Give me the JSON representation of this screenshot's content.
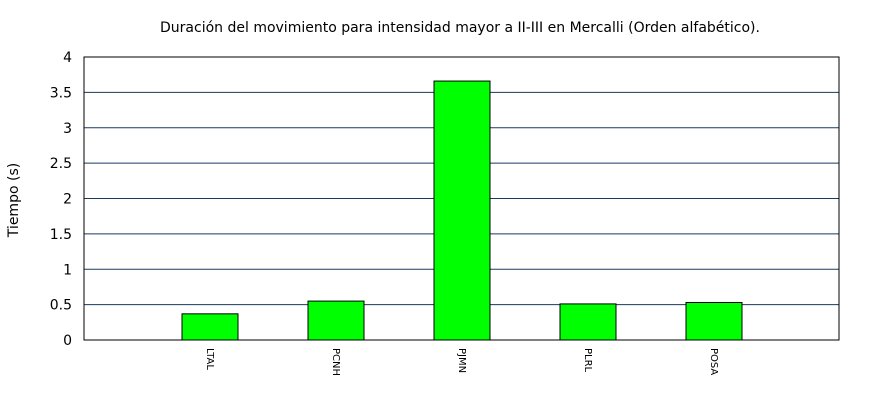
{
  "chart_data": {
    "type": "bar",
    "title": "Duración del movimiento para intensidad mayor a II-III en Mercalli (Orden alfabético).",
    "xlabel": "",
    "ylabel": "Tiempo (s)",
    "ylim": [
      0,
      4
    ],
    "yticks": [
      0,
      0.5,
      1,
      1.5,
      2,
      2.5,
      3,
      3.5,
      4
    ],
    "ytick_labels": [
      "0",
      "0.5",
      "1",
      "1.5",
      "2",
      "2.5",
      "3",
      "3.5",
      "4"
    ],
    "categories": [
      "LTAL",
      "PCNH",
      "PJMN",
      "PLRL",
      "POSA"
    ],
    "values": [
      0.37,
      0.55,
      3.66,
      0.51,
      0.53
    ],
    "grid": true,
    "legend": "none",
    "colors": {
      "bar_fill": "#00ff00",
      "bar_stroke": "#000000",
      "grid": "#1a3a5c",
      "axis": "#000000"
    }
  }
}
